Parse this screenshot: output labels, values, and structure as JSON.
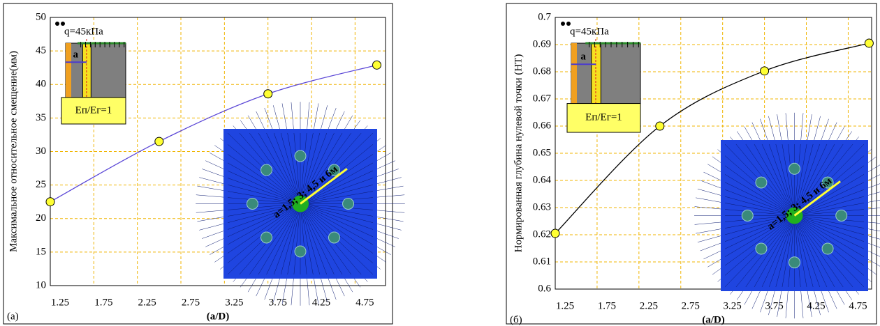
{
  "chart_data": [
    {
      "type": "line",
      "panel_label": "(а)",
      "x_label": "(a/D)",
      "y_label": "Максимальное относительное смещение(мм)",
      "x": [
        1.25,
        2.5,
        3.75,
        5.0
      ],
      "series": [
        {
          "color": "#5a46d6",
          "marker_color": "#ffff33",
          "values": [
            22.5,
            31.5,
            38.6,
            42.9
          ]
        }
      ],
      "xlim": [
        1.25,
        5.1
      ],
      "xticks": [
        1.25,
        1.75,
        2.25,
        2.75,
        3.25,
        3.75,
        4.25,
        4.75
      ],
      "ylim": [
        10,
        50
      ],
      "yticks": [
        10,
        15,
        20,
        25,
        30,
        35,
        40,
        45,
        50
      ],
      "grid": true,
      "inset": {
        "load": "q=45кПа",
        "distance": "a",
        "ratio": "Eп/Eг=1",
        "spacing": "a=1,5; 3; 4,5 и 6м"
      }
    },
    {
      "type": "line",
      "panel_label": "(б)",
      "x_label": "(a/D)",
      "y_label": "Нормированная глубина нулевой точки (HT)",
      "x": [
        1.25,
        2.5,
        3.75,
        5.0
      ],
      "series": [
        {
          "color": "#000000",
          "marker_color": "#ffff33",
          "values": [
            0.6205,
            0.66,
            0.6803,
            0.6905
          ]
        }
      ],
      "xlim": [
        1.25,
        5.03
      ],
      "xticks": [
        1.25,
        1.75,
        2.25,
        2.75,
        3.25,
        3.75,
        4.25,
        4.75
      ],
      "ylim": [
        0.6,
        0.7
      ],
      "yticks": [
        0.6,
        0.61,
        0.62,
        0.63,
        0.64,
        0.65,
        0.66,
        0.67,
        0.68,
        0.69,
        0.7
      ],
      "grid": true,
      "inset": {
        "load": "q=45кПа",
        "distance": "a",
        "ratio": "Eп/Eг=1",
        "spacing": "a=1,5; 3; 4,5 и 6м"
      }
    }
  ]
}
